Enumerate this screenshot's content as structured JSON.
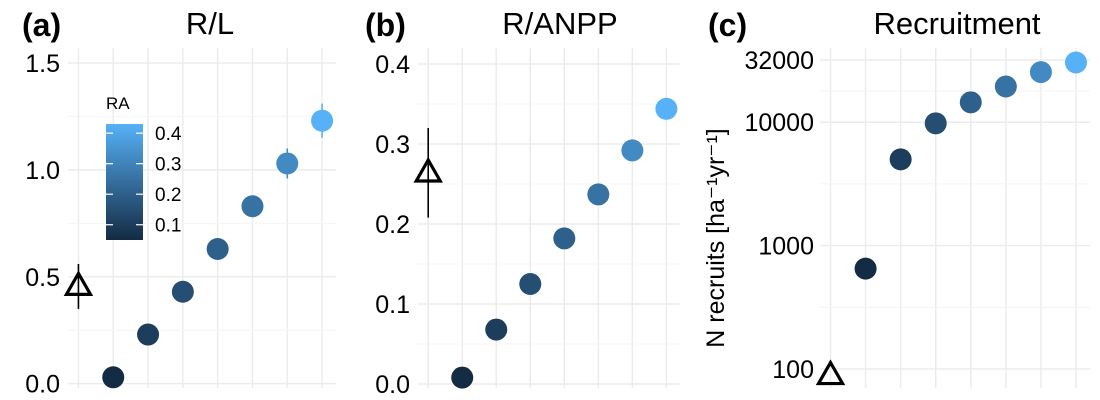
{
  "colors": {
    "low": "#132B43",
    "high": "#56B1F7",
    "reference": "#000000"
  },
  "legend": {
    "title": "RA",
    "range": [
      0.05,
      0.43
    ],
    "ticks": [
      "0.1",
      "0.2",
      "0.3",
      "0.4"
    ]
  },
  "chart_data": [
    {
      "type": "scatter",
      "label": "(a)",
      "title": "R/L",
      "ylabel": "",
      "yscale": "linear",
      "ylim": [
        -0.02,
        1.57
      ],
      "yticks": [
        0.0,
        0.5,
        1.0,
        1.5
      ],
      "ytick_labels": [
        "0.0",
        "0.5",
        "1.0",
        "1.5"
      ],
      "reference_point": {
        "x": 1,
        "y": 0.46,
        "err": [
          0.35,
          0.56
        ]
      },
      "points": [
        {
          "x": 2,
          "y": 0.03,
          "ra": 0.05
        },
        {
          "x": 3,
          "y": 0.23,
          "ra": 0.1
        },
        {
          "x": 4,
          "y": 0.43,
          "ra": 0.15
        },
        {
          "x": 5,
          "y": 0.63,
          "ra": 0.2
        },
        {
          "x": 6,
          "y": 0.83,
          "ra": 0.25,
          "err": [
            0.79,
            0.87
          ]
        },
        {
          "x": 7,
          "y": 1.03,
          "ra": 0.32,
          "err": [
            0.96,
            1.1
          ]
        },
        {
          "x": 8,
          "y": 1.23,
          "ra": 0.43,
          "err": [
            1.15,
            1.31
          ]
        }
      ]
    },
    {
      "type": "scatter",
      "label": "(b)",
      "title": "R/ANPP",
      "ylabel": "",
      "yscale": "linear",
      "ylim": [
        -0.005,
        0.42
      ],
      "yticks": [
        0.0,
        0.1,
        0.2,
        0.3,
        0.4
      ],
      "ytick_labels": [
        "0.0",
        "0.1",
        "0.2",
        "0.3",
        "0.4"
      ],
      "reference_point": {
        "x": 1,
        "y": 0.265,
        "err": [
          0.208,
          0.32
        ]
      },
      "points": [
        {
          "x": 2,
          "y": 0.008,
          "ra": 0.05
        },
        {
          "x": 3,
          "y": 0.068,
          "ra": 0.1
        },
        {
          "x": 4,
          "y": 0.125,
          "ra": 0.15
        },
        {
          "x": 5,
          "y": 0.182,
          "ra": 0.2
        },
        {
          "x": 6,
          "y": 0.237,
          "ra": 0.25
        },
        {
          "x": 7,
          "y": 0.292,
          "ra": 0.32
        },
        {
          "x": 8,
          "y": 0.344,
          "ra": 0.43
        }
      ]
    },
    {
      "type": "scatter",
      "label": "(c)",
      "title": "Recruitment",
      "ylabel": "N recruits [ha⁻¹yr⁻¹]",
      "yscale": "log",
      "ylim": [
        70,
        40000
      ],
      "yticks": [
        100,
        1000,
        10000,
        32000
      ],
      "ytick_labels": [
        "100",
        "1000",
        "10000",
        "32000"
      ],
      "reference_point": {
        "x": 1,
        "y": 90
      },
      "points": [
        {
          "x": 2,
          "y": 650,
          "ra": 0.05
        },
        {
          "x": 3,
          "y": 5000,
          "ra": 0.1
        },
        {
          "x": 4,
          "y": 9800,
          "ra": 0.15
        },
        {
          "x": 5,
          "y": 14500,
          "ra": 0.2
        },
        {
          "x": 6,
          "y": 19500,
          "ra": 0.25
        },
        {
          "x": 7,
          "y": 25500,
          "ra": 0.32
        },
        {
          "x": 8,
          "y": 30500,
          "ra": 0.43
        }
      ]
    }
  ]
}
